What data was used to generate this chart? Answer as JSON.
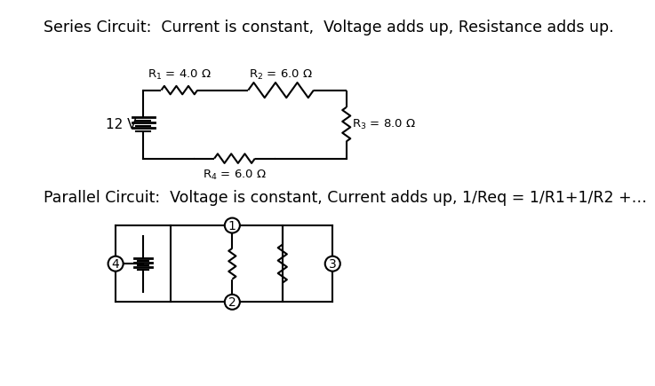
{
  "title1": "Series Circuit:  Current is constant,  Voltage adds up, Resistance adds up.",
  "title2": "Parallel Circuit:  Voltage is constant, Current adds up, 1/Req = 1/R1+1/R2 +…",
  "bg_color": "#ffffff",
  "line_color": "#000000",
  "font_size_title": 12.5,
  "battery_label": "12 V",
  "R1_label": "R$_1$ = 4.0 Ω",
  "R2_label": "R$_2$ = 6.0 Ω",
  "R3_label": "R$_3$ = 8.0 Ω",
  "R4_label": "R$_4$ = 6.0 Ω"
}
